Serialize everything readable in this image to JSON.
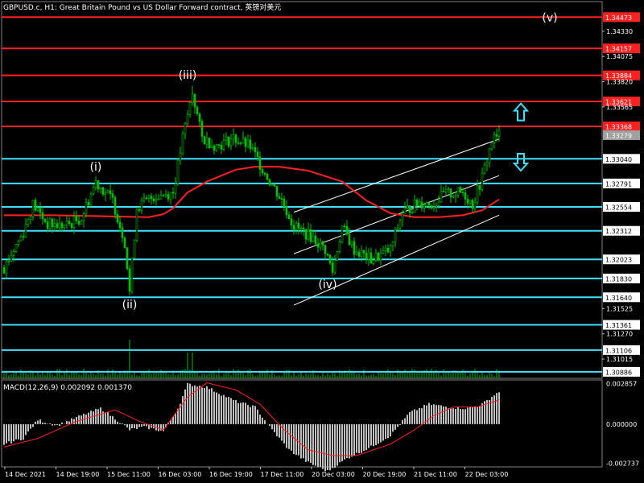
{
  "header": {
    "title": "GBPUSD.c, H1:  Great Britain Pound vs US Dollar Forward contract, 英镑对美元"
  },
  "macd": {
    "label": "MACD(12,26,9) 0.002092 0.001370"
  },
  "colors": {
    "background": "#000000",
    "candle": "#00c000",
    "red_level": "#ff2020",
    "cyan_level": "#40e0ff",
    "moving_average": "#ff2020",
    "channel": "#ffffff",
    "arrow": "#40e0ff",
    "macd_hist": "#c0c0c0",
    "macd_signal": "#ff2020"
  },
  "chart_data": {
    "type": "candlestick",
    "symbol": "GBPUSD.c",
    "timeframe": "H1",
    "price_axis": {
      "ticks": [
        "1.34330",
        "1.34075",
        "1.33820",
        "1.33565",
        "1.33279",
        "1.33040",
        "1.32791",
        "1.32554",
        "1.32312",
        "1.32023",
        "1.31830",
        "1.31640",
        "1.31525",
        "1.31361",
        "1.31270",
        "1.31106",
        "1.31015",
        "1.30886"
      ],
      "ylim": [
        1.3082,
        1.3463
      ]
    },
    "current_price": "1.33279",
    "red_levels": [
      {
        "label": "1.34473",
        "price": 1.34473
      },
      {
        "label": "1.34157",
        "price": 1.34157
      },
      {
        "label": "1.33884",
        "price": 1.33884
      },
      {
        "label": "1.33621",
        "price": 1.33621
      },
      {
        "label": "1.33368",
        "price": 1.33368
      }
    ],
    "cyan_levels": [
      {
        "label": "1.33040",
        "price": 1.3304
      },
      {
        "label": "1.32791",
        "price": 1.32791
      },
      {
        "label": "1.32554",
        "price": 1.32554
      },
      {
        "label": "1.32312",
        "price": 1.32312
      },
      {
        "label": "1.32023",
        "price": 1.32023
      },
      {
        "label": "1.31830",
        "price": 1.3183
      },
      {
        "label": "1.31640",
        "price": 1.3164
      },
      {
        "label": "1.31361",
        "price": 1.31361
      },
      {
        "label": "1.31106",
        "price": 1.31106
      },
      {
        "label": "1.30886",
        "price": 1.30886
      }
    ],
    "time_axis": [
      "14 Dec 2021",
      "14 Dec 19:00",
      "15 Dec 11:00",
      "16 Dec 03:00",
      "16 Dec 19:00",
      "17 Dec 11:00",
      "20 Dec 03:00",
      "20 Dec 19:00",
      "21 Dec 11:00",
      "22 Dec 03:00"
    ],
    "bar_count": 206,
    "price_path": [
      [
        0,
        1.3194
      ],
      [
        8,
        1.323
      ],
      [
        12,
        1.3258
      ],
      [
        18,
        1.3238
      ],
      [
        25,
        1.3236
      ],
      [
        32,
        1.3244
      ],
      [
        38,
        1.3281
      ],
      [
        45,
        1.3262
      ],
      [
        50,
        1.322
      ],
      [
        52,
        1.317
      ],
      [
        55,
        1.3255
      ],
      [
        62,
        1.3266
      ],
      [
        70,
        1.327
      ],
      [
        74,
        1.3325
      ],
      [
        78,
        1.3371
      ],
      [
        82,
        1.3325
      ],
      [
        88,
        1.3317
      ],
      [
        95,
        1.3325
      ],
      [
        102,
        1.3316
      ],
      [
        108,
        1.329
      ],
      [
        115,
        1.3262
      ],
      [
        120,
        1.3236
      ],
      [
        128,
        1.3224
      ],
      [
        133,
        1.3212
      ],
      [
        136,
        1.319
      ],
      [
        140,
        1.3235
      ],
      [
        145,
        1.3212
      ],
      [
        152,
        1.3202
      ],
      [
        160,
        1.3212
      ],
      [
        165,
        1.325
      ],
      [
        172,
        1.326
      ],
      [
        178,
        1.3258
      ],
      [
        182,
        1.3268
      ],
      [
        190,
        1.327
      ],
      [
        194,
        1.3258
      ],
      [
        198,
        1.3285
      ],
      [
        202,
        1.3322
      ],
      [
        205,
        1.3328
      ]
    ],
    "moving_average": [
      [
        0,
        1.3247
      ],
      [
        20,
        1.3247
      ],
      [
        40,
        1.3246
      ],
      [
        60,
        1.3245
      ],
      [
        66,
        1.3248
      ],
      [
        70,
        1.3254
      ],
      [
        76,
        1.327
      ],
      [
        84,
        1.3281
      ],
      [
        96,
        1.3293
      ],
      [
        104,
        1.3296
      ],
      [
        114,
        1.3296
      ],
      [
        126,
        1.3292
      ],
      [
        140,
        1.3281
      ],
      [
        150,
        1.3262
      ],
      [
        160,
        1.3249
      ],
      [
        170,
        1.3245
      ],
      [
        180,
        1.3245
      ],
      [
        190,
        1.3247
      ],
      [
        198,
        1.3252
      ],
      [
        205,
        1.3263
      ]
    ],
    "channel": {
      "upper": [
        [
          120,
          1.325
        ],
        [
          205,
          1.3324
        ]
      ],
      "middle": [
        [
          120,
          1.3208
        ],
        [
          205,
          1.3287
        ]
      ],
      "lower": [
        [
          120,
          1.3156
        ],
        [
          205,
          1.3247
        ]
      ]
    },
    "wave_labels": [
      {
        "text": "(i)",
        "bar": 38,
        "price": 1.3292
      },
      {
        "text": "(ii)",
        "bar": 52,
        "price": 1.3153
      },
      {
        "text": "(iii)",
        "bar": 76,
        "price": 1.3385
      },
      {
        "text": "(iv)",
        "bar": 134,
        "price": 1.3173
      },
      {
        "text": "(v)",
        "bar": 226,
        "price": 1.3443
      }
    ],
    "arrows": [
      {
        "direction": "up",
        "bar": 214,
        "price": 1.3351
      },
      {
        "direction": "down",
        "bar": 214,
        "price": 1.3301
      }
    ],
    "macd": {
      "ticks": [
        "0.002857",
        "0.000000",
        "-0.002737"
      ],
      "ylim": [
        -0.003,
        0.0031
      ],
      "histogram_path": [
        [
          0,
          -0.0014
        ],
        [
          8,
          -0.001
        ],
        [
          14,
          0.0003
        ],
        [
          22,
          -0.0001
        ],
        [
          32,
          0.0006
        ],
        [
          40,
          0.0011
        ],
        [
          46,
          0.0004
        ],
        [
          52,
          -0.0004
        ],
        [
          58,
          -0.0002
        ],
        [
          66,
          -0.0005
        ],
        [
          72,
          0.0011
        ],
        [
          76,
          0.0028
        ],
        [
          84,
          0.0026
        ],
        [
          96,
          0.0016
        ],
        [
          104,
          0.0012
        ],
        [
          110,
          -0.0002
        ],
        [
          118,
          -0.0018
        ],
        [
          126,
          -0.0027
        ],
        [
          134,
          -0.0033
        ],
        [
          142,
          -0.0024
        ],
        [
          152,
          -0.0016
        ],
        [
          160,
          -0.0008
        ],
        [
          168,
          0.0008
        ],
        [
          176,
          0.0014
        ],
        [
          184,
          0.0012
        ],
        [
          192,
          0.0011
        ],
        [
          198,
          0.0014
        ],
        [
          205,
          0.0023
        ]
      ],
      "signal_path": [
        [
          0,
          -0.0016
        ],
        [
          14,
          -0.001
        ],
        [
          30,
          0.0002
        ],
        [
          46,
          0.001
        ],
        [
          56,
          0.0002
        ],
        [
          66,
          -0.0004
        ],
        [
          76,
          0.0019
        ],
        [
          84,
          0.0029
        ],
        [
          96,
          0.0024
        ],
        [
          106,
          0.0014
        ],
        [
          116,
          -0.0004
        ],
        [
          126,
          -0.0018
        ],
        [
          136,
          -0.0022
        ],
        [
          146,
          -0.0022
        ],
        [
          160,
          -0.0014
        ],
        [
          170,
          -0.0004
        ],
        [
          178,
          0.0006
        ],
        [
          186,
          0.0012
        ],
        [
          196,
          0.0012
        ],
        [
          205,
          0.0017
        ]
      ]
    }
  }
}
